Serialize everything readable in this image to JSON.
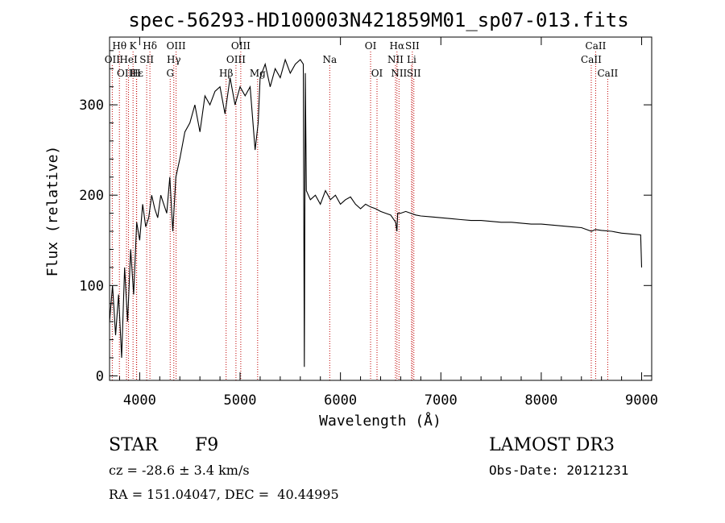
{
  "chart_data": {
    "type": "line",
    "title": "spec-56293-HD100003N421859M01_sp07-013.fits",
    "xlabel": "Wavelength (Å)",
    "ylabel": "Flux (relative)",
    "xlim": [
      3700,
      9100
    ],
    "ylim": [
      -5,
      375
    ],
    "xticks": [
      4000,
      5000,
      6000,
      7000,
      8000,
      9000
    ],
    "yticks": [
      0,
      100,
      200,
      300
    ],
    "grid": false,
    "series": [
      {
        "x": [
          3700,
          3730,
          3760,
          3790,
          3820,
          3850,
          3880,
          3910,
          3940,
          3970,
          4000,
          4030,
          4060,
          4090,
          4120,
          4150,
          4180,
          4210,
          4240,
          4270,
          4300,
          4330,
          4360,
          4400,
          4450,
          4500,
          4550,
          4600,
          4650,
          4700,
          4750,
          4800,
          4850,
          4900,
          4950,
          5000,
          5050,
          5100,
          5150,
          5180,
          5200,
          5250,
          5300,
          5350,
          5400,
          5450,
          5500,
          5550,
          5600,
          5630,
          5640,
          5650,
          5660,
          5700,
          5750,
          5800,
          5850,
          5900,
          5950,
          6000,
          6050,
          6100,
          6150,
          6200,
          6250,
          6300,
          6350,
          6400,
          6450,
          6500,
          6550,
          6562,
          6570,
          6600,
          6650,
          6700,
          6750,
          6800,
          6900,
          7000,
          7100,
          7200,
          7300,
          7400,
          7500,
          7600,
          7700,
          7800,
          7900,
          8000,
          8100,
          8200,
          8300,
          8400,
          8500,
          8540,
          8600,
          8700,
          8800,
          8900,
          8990,
          9000
        ],
        "y": [
          60,
          100,
          45,
          90,
          20,
          120,
          60,
          140,
          90,
          170,
          150,
          190,
          165,
          175,
          200,
          185,
          175,
          200,
          190,
          180,
          220,
          160,
          220,
          240,
          270,
          280,
          300,
          270,
          310,
          300,
          315,
          320,
          290,
          330,
          300,
          320,
          310,
          320,
          250,
          280,
          330,
          345,
          320,
          340,
          330,
          350,
          335,
          345,
          350,
          345,
          10,
          335,
          205,
          195,
          200,
          190,
          205,
          195,
          200,
          190,
          195,
          198,
          190,
          185,
          190,
          187,
          185,
          182,
          180,
          178,
          170,
          160,
          180,
          180,
          182,
          180,
          178,
          177,
          176,
          175,
          174,
          173,
          172,
          172,
          171,
          170,
          170,
          169,
          168,
          168,
          167,
          166,
          165,
          164,
          160,
          162,
          161,
          160,
          158,
          157,
          156,
          120
        ]
      }
    ],
    "annotations": {
      "row1": [
        {
          "label": "Hθ",
          "x": 3798
        },
        {
          "label": "K",
          "x": 3934
        },
        {
          "label": "Hδ",
          "x": 4102
        },
        {
          "label": "OIII",
          "x": 4363
        },
        {
          "label": "OIII",
          "x": 5007
        },
        {
          "label": "OI",
          "x": 6300
        },
        {
          "label": "Hα",
          "x": 6563
        },
        {
          "label": "SII",
          "x": 6716
        },
        {
          "label": "CaII",
          "x": 8542
        }
      ],
      "row2": [
        {
          "label": "OII",
          "x": 3727
        },
        {
          "label": "HeI",
          "x": 3889
        },
        {
          "label": "SII",
          "x": 4070
        },
        {
          "label": "Hγ",
          "x": 4340
        },
        {
          "label": "OIII",
          "x": 4959
        },
        {
          "label": "Na",
          "x": 5893
        },
        {
          "label": "NII",
          "x": 6548
        },
        {
          "label": "Li",
          "x": 6708
        },
        {
          "label": "CaII",
          "x": 8498
        }
      ],
      "row3": [
        {
          "label": "OIII",
          "x": 3869
        },
        {
          "label": "Hε",
          "x": 3970
        },
        {
          "label": "H",
          "x": 3968
        },
        {
          "label": "G",
          "x": 4304
        },
        {
          "label": "Hβ",
          "x": 4861
        },
        {
          "label": "Mg",
          "x": 5175
        },
        {
          "label": "OI",
          "x": 6364
        },
        {
          "label": "NII",
          "x": 6583
        },
        {
          "label": "SII",
          "x": 6731
        },
        {
          "label": "CaII",
          "x": 8662
        }
      ]
    },
    "line_color": "#000000",
    "marker_line_color": "#c00000"
  },
  "info": {
    "object_class": "STAR",
    "subclass": "F9",
    "survey": "LAMOST DR3",
    "cz": "cz = -28.6 ± 3.4 km/s",
    "obs_date": "Obs-Date: 20121231",
    "coords": "RA = 151.04047, DEC =  40.44995"
  }
}
